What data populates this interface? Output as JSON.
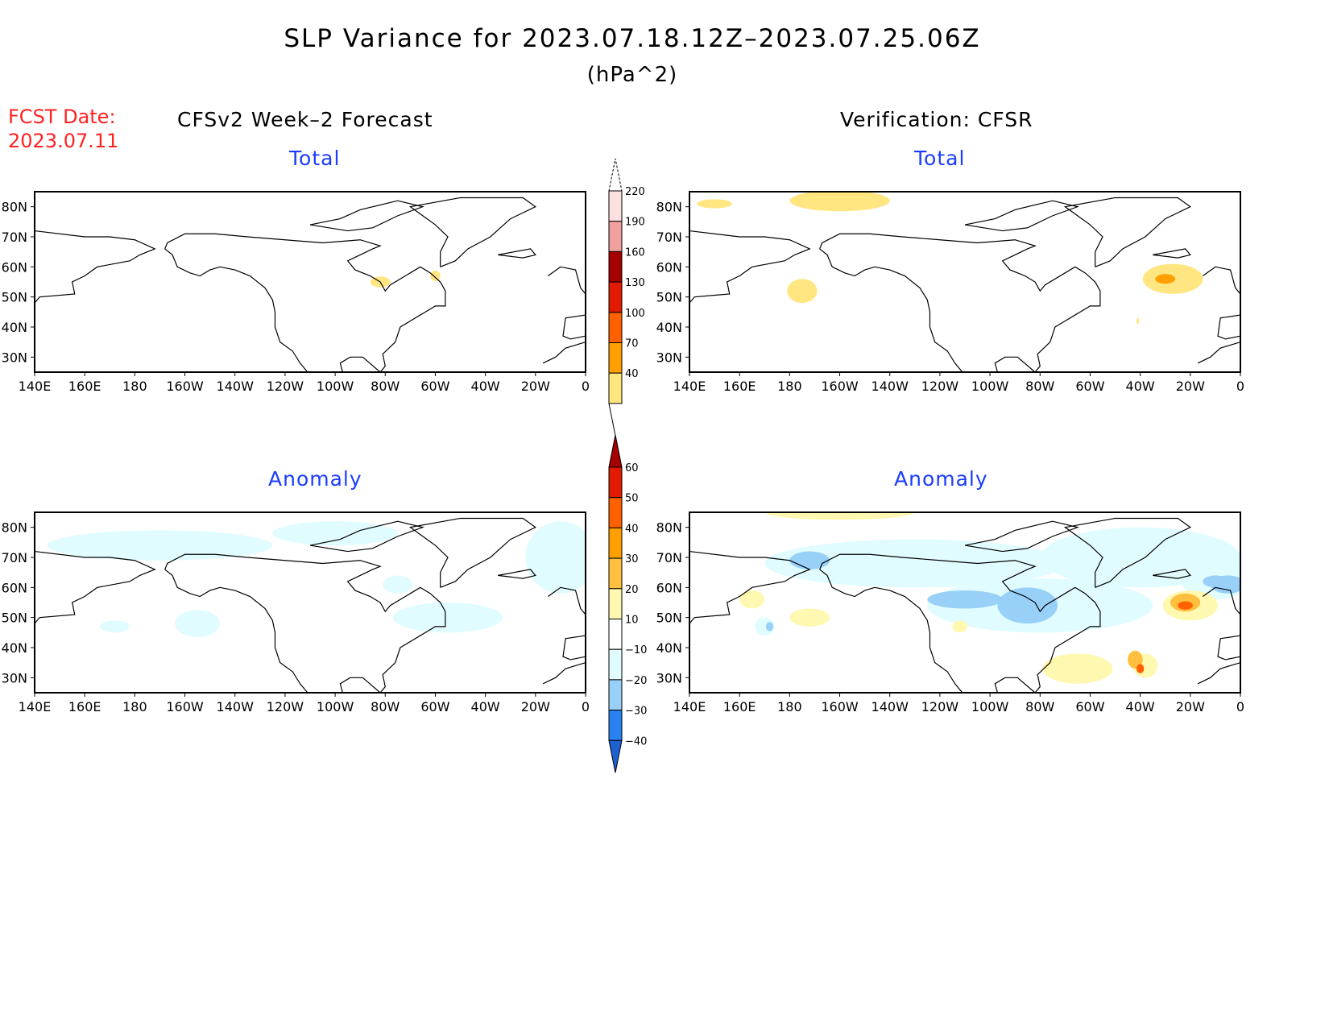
{
  "title": "SLP Variance for 2023.07.18.12Z–2023.07.25.06Z",
  "units": "(hPa^2)",
  "fcst_label": "FCST Date:",
  "fcst_date": "2023.07.11",
  "left_header": "CFSv2 Week–2 Forecast",
  "right_header": "Verification: CFSR",
  "panels": [
    {
      "id": "fcst-total",
      "subtitle": "Total",
      "scale": "total",
      "shading": [
        [
          278,
          55,
          4,
          1.8,
          1
        ],
        [
          300,
          57,
          2,
          1.8,
          1
        ]
      ]
    },
    {
      "id": "verif-total",
      "subtitle": "Total",
      "scale": "total",
      "shading": [
        [
          200,
          82,
          20,
          3.5,
          1
        ],
        [
          150,
          81,
          7,
          1.5,
          1
        ],
        [
          185,
          52,
          6,
          4,
          1
        ],
        [
          333,
          56,
          12,
          5,
          1
        ],
        [
          330,
          56,
          4,
          1.6,
          2
        ],
        [
          319,
          42,
          0.5,
          1,
          1
        ]
      ]
    },
    {
      "id": "fcst-anomaly",
      "subtitle": "Anomaly",
      "scale": "anomaly",
      "shading": [
        [
          190,
          74,
          45,
          5,
          -1
        ],
        [
          260,
          78,
          25,
          4,
          -1
        ],
        [
          205,
          48,
          9,
          4.5,
          -1
        ],
        [
          172,
          47,
          6,
          2,
          -1
        ],
        [
          305,
          50,
          22,
          5,
          -1
        ],
        [
          350,
          70,
          14,
          12,
          -1
        ],
        [
          285,
          61,
          6,
          3,
          -1
        ]
      ]
    },
    {
      "id": "verif-anomaly",
      "subtitle": "Anomaly",
      "scale": "anomaly",
      "shading": [
        [
          230,
          68,
          60,
          8,
          -1
        ],
        [
          320,
          70,
          40,
          10,
          -1
        ],
        [
          280,
          54,
          45,
          9,
          -1
        ],
        [
          350,
          63,
          14,
          7,
          -1
        ],
        [
          355,
          61,
          7,
          3,
          -2
        ],
        [
          275,
          54,
          12,
          6,
          -2
        ],
        [
          250,
          56,
          15,
          3,
          -2
        ],
        [
          188,
          69,
          8,
          3,
          -2
        ],
        [
          350,
          62,
          5,
          2,
          -2
        ],
        [
          200,
          85,
          30,
          2.5,
          1
        ],
        [
          188,
          50,
          8,
          3,
          1
        ],
        [
          165,
          56,
          5,
          3,
          1
        ],
        [
          248,
          47,
          3,
          2,
          1
        ],
        [
          340,
          54,
          11,
          5,
          1
        ],
        [
          338,
          55,
          6,
          3,
          2
        ],
        [
          338,
          54,
          3,
          1.4,
          3
        ],
        [
          295,
          33,
          14,
          5,
          1
        ],
        [
          322,
          34,
          5,
          4,
          1
        ],
        [
          318,
          36,
          3,
          3,
          2
        ],
        [
          320,
          33,
          1.5,
          1.5,
          3
        ],
        [
          170,
          47,
          4,
          3,
          -1
        ],
        [
          172,
          47,
          1.5,
          1.5,
          -2
        ]
      ]
    }
  ],
  "lon_ticks": [
    "140E",
    "160E",
    "180",
    "160W",
    "140W",
    "120W",
    "100W",
    "80W",
    "60W",
    "40W",
    "20W",
    "0"
  ],
  "lat_ticks": [
    "80N",
    "70N",
    "60N",
    "50N",
    "40N",
    "30N"
  ],
  "colorbars": {
    "total": {
      "labels": [
        "40",
        "70",
        "100",
        "130",
        "160",
        "190",
        "220"
      ],
      "colors": [
        "#ffe680",
        "#ffa000",
        "#ff6000",
        "#e11a00",
        "#a50000",
        "#f0a0a0",
        "#ffe0e0"
      ]
    },
    "anomaly": {
      "labels": [
        "−40",
        "−30",
        "−20",
        "−10",
        "10",
        "20",
        "30",
        "40",
        "50",
        "60"
      ],
      "colors": [
        "#1e60d0",
        "#2a82f0",
        "#98d0f8",
        "#e0fcff",
        "#ffffff",
        "#fff8b0",
        "#ffc040",
        "#ffa000",
        "#ff6000",
        "#e11a00",
        "#a50000"
      ]
    }
  },
  "level_colors": {
    "-2": "#98d0f8",
    "-1": "#e0fcff",
    "1": "#fff8b0",
    "2": "#ffc040",
    "3": "#ff6000"
  },
  "total_level_colors": {
    "1": "#ffe680",
    "2": "#ffa000",
    "3": "#ff6000"
  }
}
